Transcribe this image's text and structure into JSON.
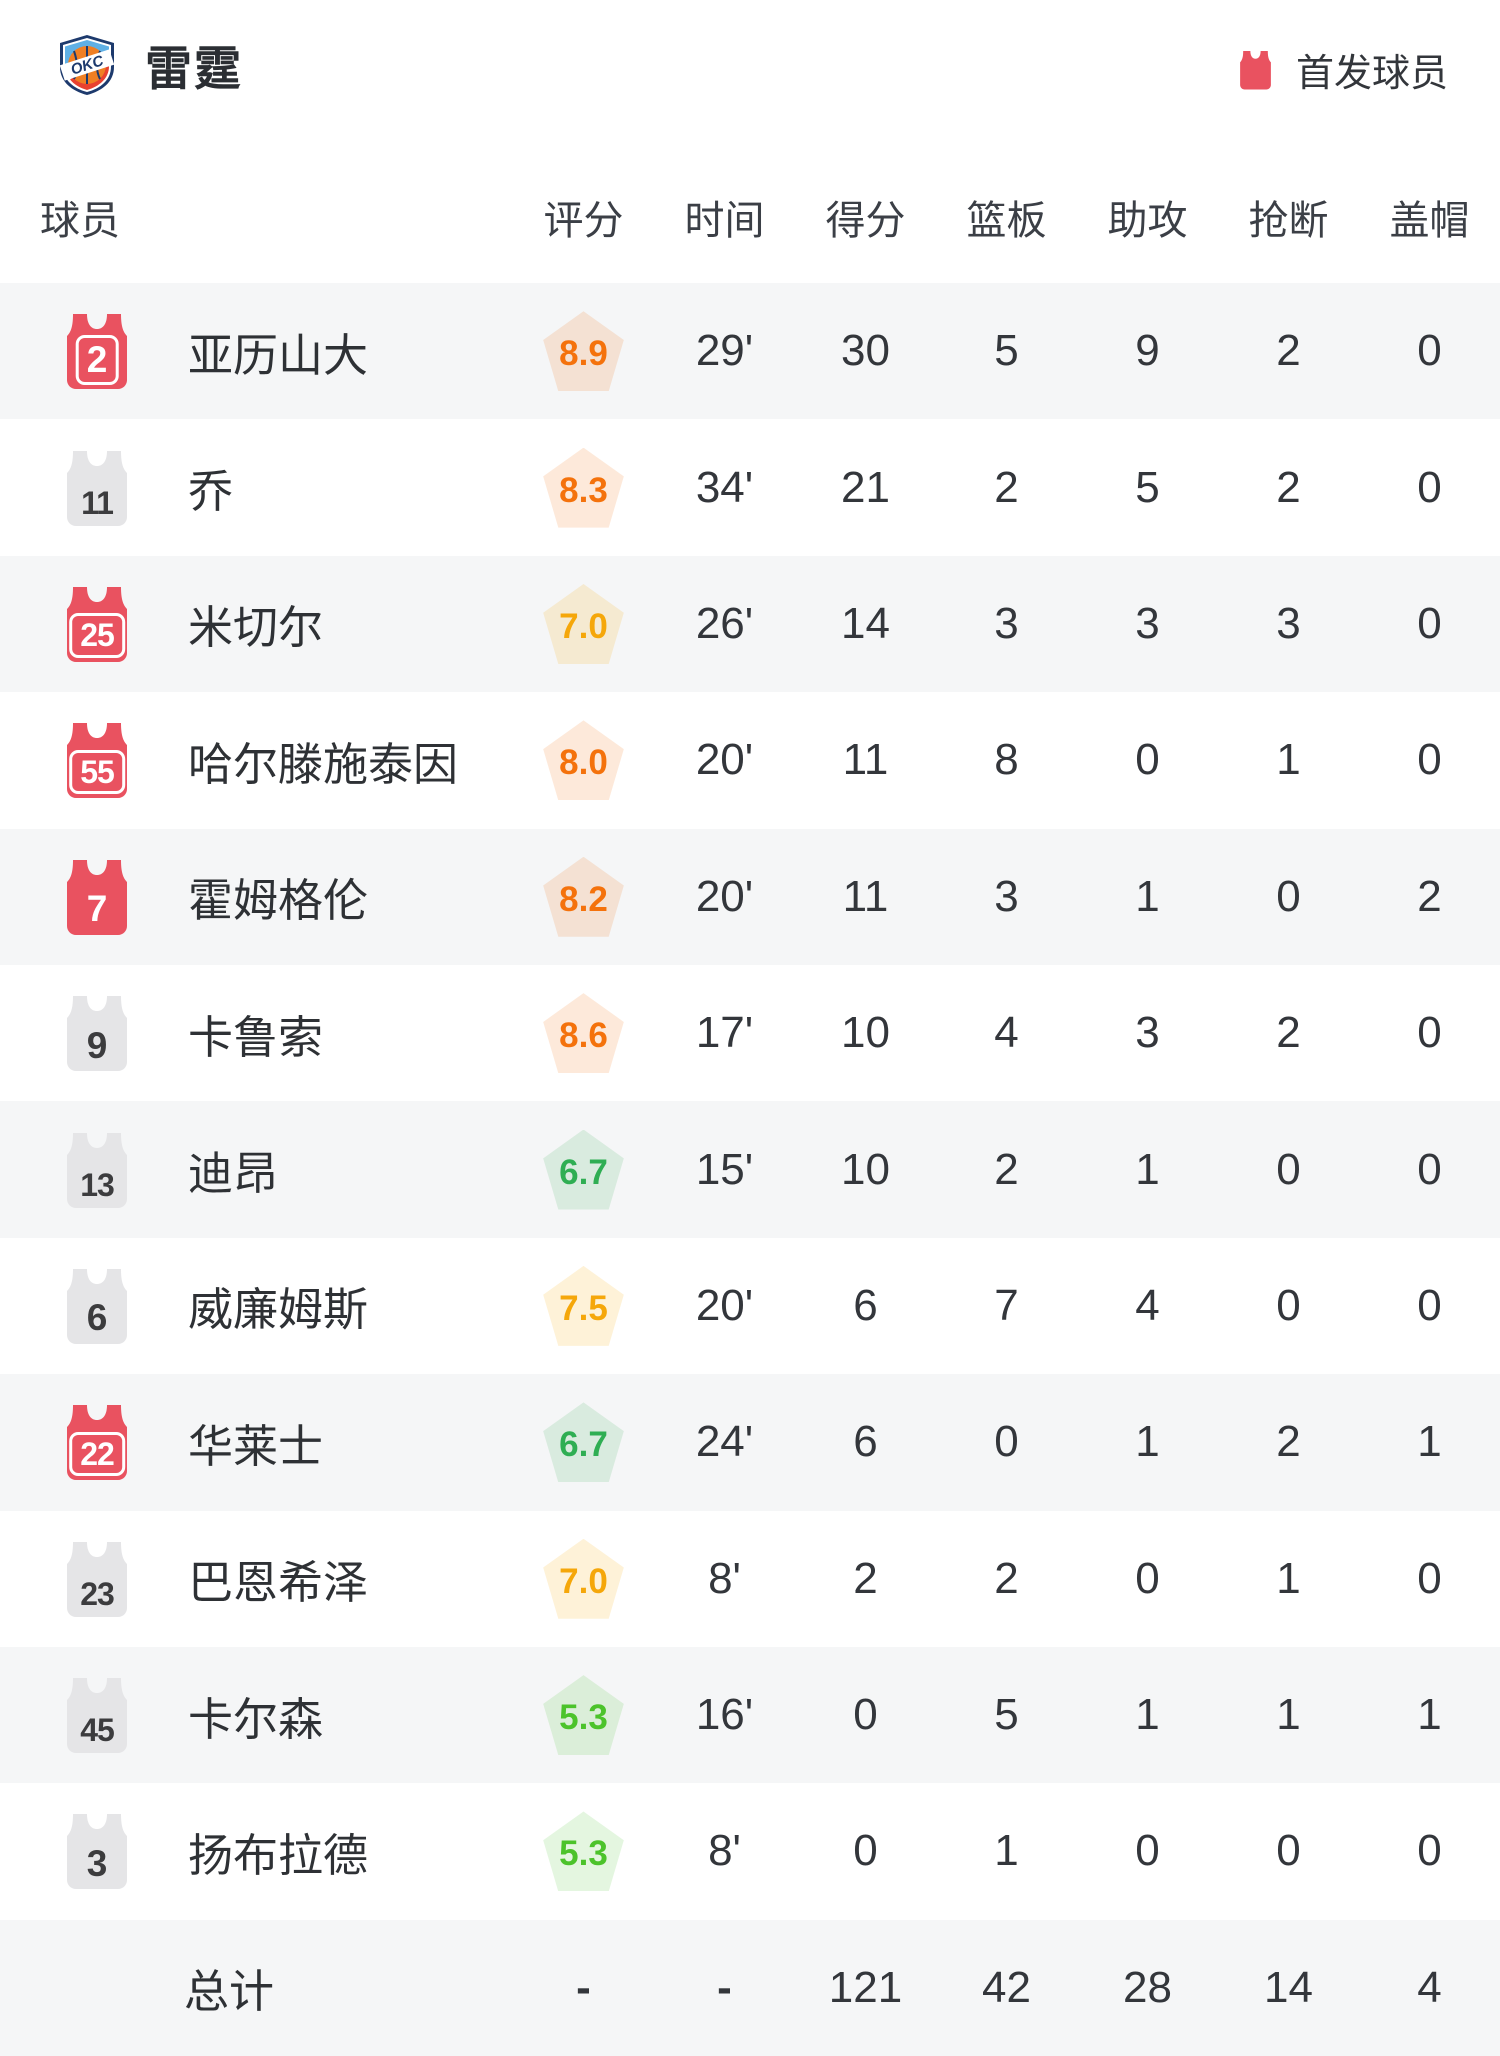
{
  "header": {
    "team_name": "雷霆",
    "team_logo": "okc-thunder-shield",
    "legend_label": "首发球员"
  },
  "table": {
    "columns": [
      "球员",
      "评分",
      "时间",
      "得分",
      "篮板",
      "助攻",
      "抢断",
      "盖帽"
    ],
    "players": [
      {
        "number": "2",
        "name": "亚历山大",
        "starter": true,
        "number_boxed": true,
        "rating": "8.9",
        "rating_tone": "orange",
        "time": "29'",
        "points": "30",
        "rebounds": "5",
        "assists": "9",
        "steals": "2",
        "blocks": "0"
      },
      {
        "number": "11",
        "name": "乔",
        "starter": false,
        "number_boxed": false,
        "rating": "8.3",
        "rating_tone": "orange",
        "time": "34'",
        "points": "21",
        "rebounds": "2",
        "assists": "5",
        "steals": "2",
        "blocks": "0"
      },
      {
        "number": "25",
        "name": "米切尔",
        "starter": true,
        "number_boxed": true,
        "rating": "7.0",
        "rating_tone": "amber",
        "time": "26'",
        "points": "14",
        "rebounds": "3",
        "assists": "3",
        "steals": "3",
        "blocks": "0"
      },
      {
        "number": "55",
        "name": "哈尔滕施泰因",
        "starter": true,
        "number_boxed": true,
        "rating": "8.0",
        "rating_tone": "orange",
        "time": "20'",
        "points": "11",
        "rebounds": "8",
        "assists": "0",
        "steals": "1",
        "blocks": "0"
      },
      {
        "number": "7",
        "name": "霍姆格伦",
        "starter": true,
        "number_boxed": false,
        "rating": "8.2",
        "rating_tone": "orange",
        "time": "20'",
        "points": "11",
        "rebounds": "3",
        "assists": "1",
        "steals": "0",
        "blocks": "2"
      },
      {
        "number": "9",
        "name": "卡鲁索",
        "starter": false,
        "number_boxed": false,
        "rating": "8.6",
        "rating_tone": "orange",
        "time": "17'",
        "points": "10",
        "rebounds": "4",
        "assists": "3",
        "steals": "2",
        "blocks": "0"
      },
      {
        "number": "13",
        "name": "迪昂",
        "starter": false,
        "number_boxed": false,
        "rating": "6.7",
        "rating_tone": "green",
        "time": "15'",
        "points": "10",
        "rebounds": "2",
        "assists": "1",
        "steals": "0",
        "blocks": "0"
      },
      {
        "number": "6",
        "name": "威廉姆斯",
        "starter": false,
        "number_boxed": false,
        "rating": "7.5",
        "rating_tone": "amber",
        "time": "20'",
        "points": "6",
        "rebounds": "7",
        "assists": "4",
        "steals": "0",
        "blocks": "0"
      },
      {
        "number": "22",
        "name": "华莱士",
        "starter": true,
        "number_boxed": true,
        "rating": "6.7",
        "rating_tone": "green",
        "time": "24'",
        "points": "6",
        "rebounds": "0",
        "assists": "1",
        "steals": "2",
        "blocks": "1"
      },
      {
        "number": "23",
        "name": "巴恩希泽",
        "starter": false,
        "number_boxed": false,
        "rating": "7.0",
        "rating_tone": "amber",
        "time": "8'",
        "points": "2",
        "rebounds": "2",
        "assists": "0",
        "steals": "1",
        "blocks": "0"
      },
      {
        "number": "45",
        "name": "卡尔森",
        "starter": false,
        "number_boxed": false,
        "rating": "5.3",
        "rating_tone": "green_bright",
        "time": "16'",
        "points": "0",
        "rebounds": "5",
        "assists": "1",
        "steals": "1",
        "blocks": "1"
      },
      {
        "number": "3",
        "name": "扬布拉德",
        "starter": false,
        "number_boxed": false,
        "rating": "5.3",
        "rating_tone": "green_bright",
        "time": "8'",
        "points": "0",
        "rebounds": "1",
        "assists": "0",
        "steals": "0",
        "blocks": "0"
      }
    ],
    "total": {
      "label": "总计",
      "rating": "-",
      "time": "-",
      "points": "121",
      "rebounds": "42",
      "assists": "28",
      "steals": "14",
      "blocks": "4"
    }
  },
  "colors": {
    "starter_jersey": "#e95260",
    "bench_jersey": "#e5e5e7",
    "bench_number_text": "#3c3c3e",
    "starter_number_text": "#ffffff",
    "row_shade": "#f5f6f7",
    "rating_tones": {
      "orange": {
        "text": "#f4720c",
        "bg": "rgba(245,120,25,0.16)"
      },
      "amber": {
        "text": "#f5a70a",
        "bg": "rgba(247,178,22,0.17)"
      },
      "green": {
        "text": "#2fae53",
        "bg": "rgba(62,175,90,0.15)"
      },
      "green_bright": {
        "text": "#4cc32b",
        "bg": "rgba(90,200,60,0.16)"
      }
    }
  }
}
